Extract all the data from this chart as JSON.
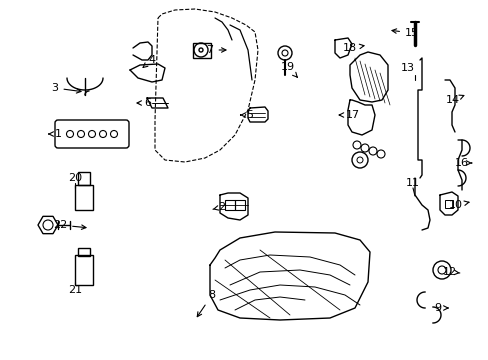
{
  "background_color": "#ffffff",
  "line_color": "#000000",
  "fig_width": 4.89,
  "fig_height": 3.6,
  "dpi": 100,
  "label_fontsize": 8.0
}
